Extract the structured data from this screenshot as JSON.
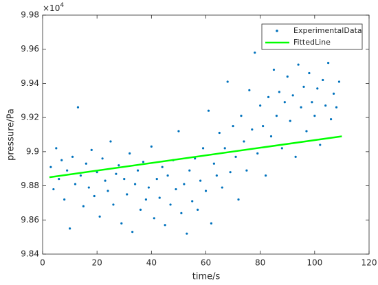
{
  "chart_data": {
    "type": "scatter",
    "xlabel": "time/s",
    "ylabel": "pressure/Pa",
    "yaxis_exponent": {
      "base": "×10",
      "power": "4"
    },
    "xlim": [
      0,
      120
    ],
    "xticks": [
      0,
      20,
      40,
      60,
      80,
      100,
      120
    ],
    "ylim": [
      9.84,
      9.98
    ],
    "yticks": [
      9.84,
      9.86,
      9.88,
      9.9,
      9.92,
      9.94,
      9.96,
      9.98
    ],
    "legend": "northeast",
    "series": [
      {
        "name": "ExperimentalData",
        "color": "#0072bd",
        "mode": "markers",
        "x": [
          3,
          4,
          5,
          6,
          7,
          8,
          9,
          10,
          11,
          12,
          13,
          14,
          15,
          16,
          17,
          18,
          19,
          20,
          21,
          22,
          23,
          24,
          25,
          26,
          27,
          28,
          29,
          30,
          31,
          32,
          33,
          34,
          35,
          36,
          37,
          38,
          39,
          40,
          41,
          42,
          43,
          44,
          45,
          46,
          47,
          48,
          49,
          50,
          51,
          52,
          53,
          54,
          55,
          56,
          57,
          58,
          59,
          60,
          61,
          62,
          63,
          64,
          65,
          66,
          67,
          68,
          69,
          70,
          71,
          72,
          73,
          74,
          75,
          76,
          77,
          78,
          79,
          80,
          81,
          82,
          83,
          84,
          85,
          86,
          87,
          88,
          89,
          90,
          91,
          92,
          93,
          94,
          95,
          96,
          97,
          98,
          99,
          100,
          101,
          102,
          103,
          104,
          105,
          106,
          107,
          108,
          109
        ],
        "values": [
          9.891,
          9.878,
          9.902,
          9.884,
          9.895,
          9.872,
          9.889,
          9.855,
          9.897,
          9.881,
          9.926,
          9.886,
          9.868,
          9.893,
          9.879,
          9.901,
          9.874,
          9.888,
          9.862,
          9.896,
          9.883,
          9.877,
          9.906,
          9.869,
          9.887,
          9.892,
          9.858,
          9.884,
          9.875,
          9.899,
          9.853,
          9.881,
          9.889,
          9.866,
          9.894,
          9.872,
          9.879,
          9.903,
          9.861,
          9.884,
          9.873,
          9.891,
          9.857,
          9.886,
          9.869,
          9.895,
          9.878,
          9.912,
          9.864,
          9.881,
          9.852,
          9.889,
          9.871,
          9.896,
          9.866,
          9.883,
          9.902,
          9.877,
          9.924,
          9.858,
          9.893,
          9.886,
          9.911,
          9.879,
          9.902,
          9.941,
          9.888,
          9.915,
          9.897,
          9.872,
          9.921,
          9.906,
          9.889,
          9.936,
          9.913,
          9.958,
          9.899,
          9.927,
          9.915,
          9.886,
          9.932,
          9.909,
          9.948,
          9.921,
          9.935,
          9.902,
          9.929,
          9.944,
          9.918,
          9.933,
          9.897,
          9.951,
          9.926,
          9.938,
          9.912,
          9.946,
          9.929,
          9.921,
          9.937,
          9.904,
          9.942,
          9.927,
          9.952,
          9.919,
          9.934,
          9.926,
          9.941
        ]
      },
      {
        "name": "FittedLine",
        "color": "#00ff00",
        "mode": "line",
        "x": [
          2.5,
          110
        ],
        "values": [
          9.885,
          9.909
        ]
      }
    ]
  }
}
